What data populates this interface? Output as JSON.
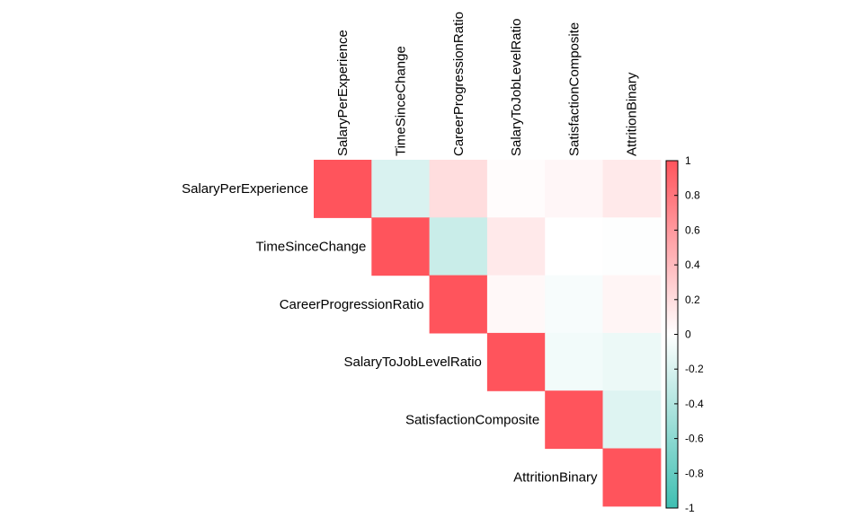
{
  "chart_data": {
    "type": "heatmap",
    "subtype": "correlation-matrix-upper",
    "variables": [
      "SalaryPerExperience",
      "TimeSinceChange",
      "CareerProgressionRatio",
      "SalaryToJobLevelRatio",
      "SatisfactionComposite",
      "AttritionBinary"
    ],
    "matrix": [
      [
        1.0,
        -0.2,
        0.2,
        0.02,
        0.05,
        0.13
      ],
      [
        -0.2,
        1.0,
        -0.28,
        0.13,
        0.0,
        -0.01
      ],
      [
        0.2,
        -0.28,
        1.0,
        0.04,
        -0.04,
        0.06
      ],
      [
        0.02,
        0.13,
        0.04,
        1.0,
        -0.07,
        -0.1
      ],
      [
        0.05,
        0.0,
        -0.04,
        -0.07,
        1.0,
        -0.17
      ],
      [
        0.13,
        -0.01,
        0.06,
        -0.1,
        -0.17,
        1.0
      ]
    ],
    "colorbar": {
      "range": [
        -1,
        1
      ],
      "ticks": [
        "1",
        "0.8",
        "0.6",
        "0.4",
        "0.2",
        "0",
        "-0.2",
        "-0.4",
        "-0.6",
        "-0.8",
        "-1"
      ],
      "low_color": "#3fbfb2",
      "mid_color": "#ffffff",
      "high_color": "#ff545c"
    }
  }
}
